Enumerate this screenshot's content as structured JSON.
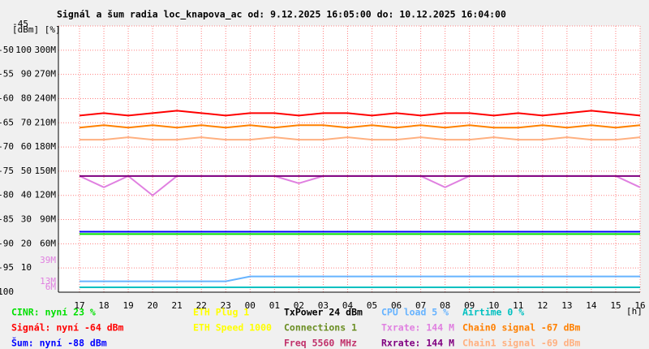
{
  "chart_data": {
    "type": "line",
    "title": "Signál a šum radia loc_knapova_ac od: 9.12.2025 16:05:00 do: 10.12.2025 16:04:00",
    "axis_units": "[dBm] [%]",
    "x_unit": "[h]",
    "categories": [
      "17",
      "18",
      "19",
      "20",
      "21",
      "22",
      "23",
      "00",
      "01",
      "02",
      "03",
      "04",
      "05",
      "06",
      "07",
      "08",
      "09",
      "10",
      "11",
      "12",
      "13",
      "14",
      "15",
      "16"
    ],
    "ylim": [
      -100,
      -45
    ],
    "yticks": [
      -45,
      -50,
      -55,
      -60,
      -65,
      -70,
      -75,
      -80,
      -85,
      -90,
      -95,
      -100
    ],
    "y2lim": [
      0,
      110
    ],
    "y2ticks": [
      100,
      90,
      80,
      70,
      60,
      50,
      40,
      30,
      20,
      10
    ],
    "y3lim": [
      0,
      330
    ],
    "y3ticks": [
      {
        "value": 300,
        "label": "300M"
      },
      {
        "value": 270,
        "label": "270M"
      },
      {
        "value": 240,
        "label": "240M"
      },
      {
        "value": 210,
        "label": "210M"
      },
      {
        "value": 180,
        "label": "180M"
      },
      {
        "value": 150,
        "label": "150M"
      },
      {
        "value": 120,
        "label": "120M"
      },
      {
        "value": 90,
        "label": "90M"
      },
      {
        "value": 60,
        "label": "60M"
      }
    ],
    "y3ticks_txrate": [
      {
        "value": 39,
        "label": "39M"
      },
      {
        "value": 13,
        "label": "13M"
      },
      {
        "value": 6,
        "label": "6M"
      }
    ],
    "grid": true,
    "series": [
      {
        "name": "CINR: nyní 23 %",
        "color": "#00e000",
        "axis": "y2",
        "values": [
          24,
          24,
          24,
          24,
          24,
          24,
          24,
          24,
          24,
          24,
          24,
          24,
          24,
          24,
          24,
          24,
          24,
          24,
          24,
          24,
          24,
          24,
          24,
          24
        ]
      },
      {
        "name": "Signál: nyní -64 dBm",
        "color": "#ff0000",
        "axis": "y",
        "values": [
          -63.5,
          -63,
          -63.5,
          -63,
          -62.5,
          -63,
          -63.5,
          -63,
          -63,
          -63.5,
          -63,
          -63,
          -63.5,
          -63,
          -63.5,
          -63,
          -63,
          -63.5,
          -63,
          -63.5,
          -63,
          -62.5,
          -63,
          -63.5
        ]
      },
      {
        "name": "Šum: nyní -88 dBm",
        "color": "#0000ff",
        "axis": "y",
        "values": [
          -87.5,
          -87.5,
          -87.5,
          -87.5,
          -87.5,
          -87.5,
          -87.5,
          -87.5,
          -87.5,
          -87.5,
          -87.5,
          -87.5,
          -87.5,
          -87.5,
          -87.5,
          -87.5,
          -87.5,
          -87.5,
          -87.5,
          -87.5,
          -87.5,
          -87.5,
          -87.5,
          -87.5
        ]
      },
      {
        "name": "ETH Plug 1",
        "color": "#ffff00"
      },
      {
        "name": "ETH Speed 1000",
        "color": "#ffff00"
      },
      {
        "name": "TxPower 24 dBm",
        "color": "#000000"
      },
      {
        "name": "Connections 1",
        "color": "#6b8e23"
      },
      {
        "name": "Freq 5560 MHz",
        "color": "#c0306a"
      },
      {
        "name": "CPU load 5 %",
        "color": "#66b3ff",
        "axis": "y2",
        "values": [
          4.5,
          4.5,
          4.5,
          4.5,
          4.5,
          4.5,
          4.5,
          6.5,
          6.5,
          6.5,
          6.5,
          6.5,
          6.5,
          6.5,
          6.5,
          6.5,
          6.5,
          6.5,
          6.5,
          6.5,
          6.5,
          6.5,
          6.5,
          6.5
        ]
      },
      {
        "name": "Txrate: 144 M",
        "color": "#e080e0",
        "axis": "y3",
        "values": [
          144,
          130,
          144,
          120,
          144,
          144,
          144,
          144,
          144,
          135,
          144,
          144,
          144,
          144,
          144,
          130,
          144,
          144,
          144,
          144,
          144,
          144,
          144,
          130
        ]
      },
      {
        "name": "Rxrate: 144 M",
        "color": "#800080",
        "axis": "y3",
        "values": [
          144,
          144,
          144,
          144,
          144,
          144,
          144,
          144,
          144,
          144,
          144,
          144,
          144,
          144,
          144,
          144,
          144,
          144,
          144,
          144,
          144,
          144,
          144,
          144
        ]
      },
      {
        "name": "Airtime 0 %",
        "color": "#00c0c0",
        "axis": "y2",
        "values": [
          2,
          2,
          2,
          2,
          2,
          2,
          2,
          2,
          2,
          2,
          2,
          2,
          2,
          2,
          2,
          2,
          2,
          2,
          2,
          2,
          2,
          2,
          2,
          2
        ]
      },
      {
        "name": "Chain0 signal -67 dBm",
        "color": "#ff8000",
        "axis": "y",
        "values": [
          -66,
          -65.5,
          -66,
          -65.5,
          -66,
          -65.5,
          -66,
          -65.5,
          -66,
          -65.5,
          -65.5,
          -66,
          -65.5,
          -66,
          -65.5,
          -66,
          -65.5,
          -66,
          -66,
          -65.5,
          -66,
          -65.5,
          -66,
          -65.5
        ]
      },
      {
        "name": "Chain1 signal -69 dBm",
        "color": "#ffb080",
        "axis": "y",
        "values": [
          -68.5,
          -68.5,
          -68,
          -68.5,
          -68.5,
          -68,
          -68.5,
          -68.5,
          -68,
          -68.5,
          -68.5,
          -68,
          -68.5,
          -68.5,
          -68,
          -68.5,
          -68.5,
          -68,
          -68.5,
          -68.5,
          -68,
          -68.5,
          -68.5,
          -68
        ]
      }
    ]
  }
}
